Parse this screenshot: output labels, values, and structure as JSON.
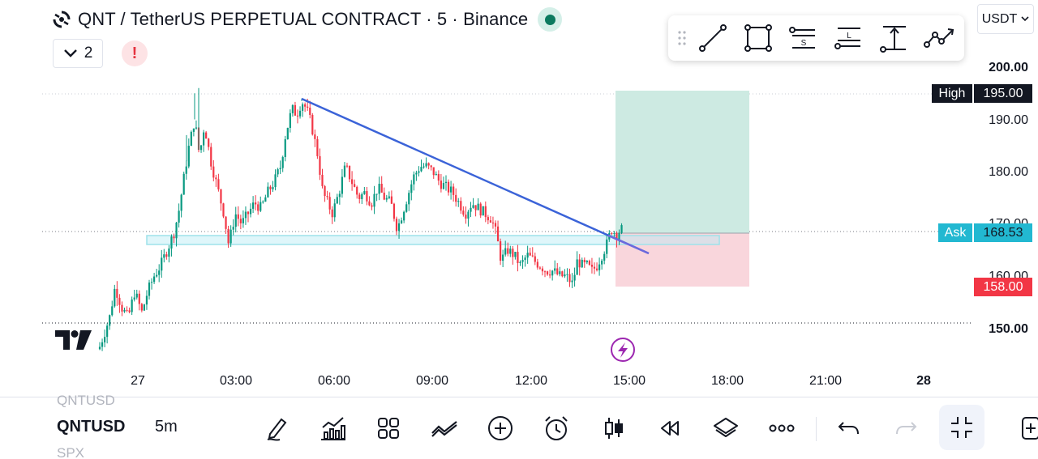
{
  "header": {
    "title": "QNT / TetherUS PERPETUAL CONTRACT · 5 · Binance",
    "indicator_count": "2",
    "warning_mark": "!",
    "status_color": "#0b7a5f",
    "currency": "USDT"
  },
  "drawing_toolbar": {
    "tools": [
      "grip-icon",
      "trend-line-icon",
      "rectangle-icon",
      "short-position-icon",
      "long-position-icon",
      "price-range-icon",
      "path-icon"
    ],
    "short_letter": "S",
    "long_letter": "L"
  },
  "price_axis": {
    "labels": [
      "200.00",
      "190.00",
      "180.00",
      "170.00",
      "160.00",
      "150.00"
    ],
    "high_label": "High",
    "high_value": "195.00",
    "ask_label": "Ask",
    "ask_value": "168.53",
    "stop_value": "158.00",
    "colors": {
      "ask": "#22b8d1",
      "stop": "#f23645",
      "high": "#131722"
    }
  },
  "time_axis": {
    "labels": [
      "27",
      "03:00",
      "06:00",
      "09:00",
      "12:00",
      "15:00",
      "18:00",
      "21:00",
      "28"
    ]
  },
  "chart_data": {
    "type": "candlestick",
    "symbol": "QNTUSDT.P",
    "interval": "5",
    "ylim": [
      145,
      203
    ],
    "trend_line": {
      "from": {
        "time": "05:00",
        "price": 194.4
      },
      "to": {
        "time": "15:00",
        "price": 166.0
      }
    },
    "support_zone": {
      "from_time": "28 Mar 01:35",
      "to_time": "16:40",
      "low": 167.6,
      "high": 168.5
    },
    "position": {
      "type": "long",
      "entry": 168.53,
      "target": 195.0,
      "stop": 158.0
    },
    "colors": {
      "up": "#089981",
      "down": "#f23645",
      "trend": "#2962ff"
    }
  },
  "bottom_bar": {
    "ghost_top": "QNTUSD",
    "symbol": "QNTUSD",
    "symbol_mark": "",
    "interval": "5m",
    "ghost_bottom": "SPX",
    "icons": [
      "pencil-icon",
      "indicators-icon",
      "templates-icon",
      "compare-icon",
      "add-icon",
      "alert-icon",
      "candle-style-icon",
      "replay-icon",
      "layers-icon",
      "more-icon",
      "undo-icon",
      "redo-icon",
      "fullscreen-exit-icon",
      "layout-icon"
    ]
  }
}
